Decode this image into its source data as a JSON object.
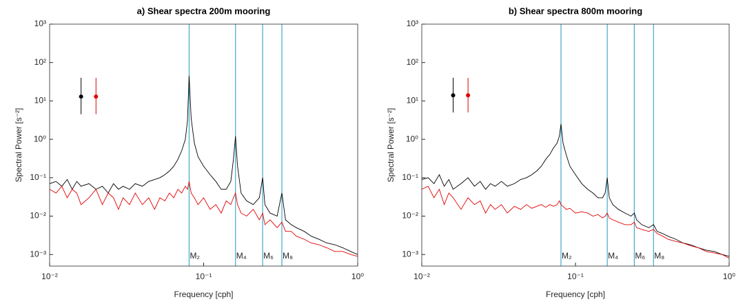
{
  "chart_data": [
    {
      "type": "line",
      "title": "a) Shear spectra 200m mooring",
      "xlabel": "Frequency [cph]",
      "ylabel": "Spectral Power [s⁻²]",
      "log_x": true,
      "log_y": true,
      "xlim": [
        0.01,
        1
      ],
      "ylim": [
        0.0005,
        1000
      ],
      "xticks": [
        {
          "value": 0.01,
          "label": "10⁻²"
        },
        {
          "value": 0.1,
          "label": "10⁻¹"
        },
        {
          "value": 1,
          "label": "10⁰"
        }
      ],
      "yticks": [
        {
          "value": 0.001,
          "label": "10⁻³"
        },
        {
          "value": 0.01,
          "label": "10⁻²"
        },
        {
          "value": 0.1,
          "label": "10⁻¹"
        },
        {
          "value": 1,
          "label": "10⁰"
        },
        {
          "value": 10,
          "label": "10¹"
        },
        {
          "value": 100,
          "label": "10²"
        },
        {
          "value": 1000,
          "label": "10³"
        }
      ],
      "x": [
        0.01,
        0.011,
        0.012,
        0.013,
        0.014,
        0.015,
        0.016,
        0.018,
        0.02,
        0.022,
        0.024,
        0.026,
        0.028,
        0.03,
        0.033,
        0.036,
        0.04,
        0.044,
        0.048,
        0.052,
        0.056,
        0.06,
        0.064,
        0.068,
        0.072,
        0.076,
        0.0785,
        0.0805,
        0.083,
        0.087,
        0.092,
        0.1,
        0.11,
        0.12,
        0.13,
        0.14,
        0.15,
        0.156,
        0.161,
        0.166,
        0.175,
        0.19,
        0.21,
        0.23,
        0.2415,
        0.25,
        0.27,
        0.3,
        0.322,
        0.34,
        0.37,
        0.4,
        0.45,
        0.5,
        0.56,
        0.63,
        0.71,
        0.8,
        0.9,
        1.0
      ],
      "series": [
        {
          "color": "#000000",
          "values": [
            0.07,
            0.08,
            0.06,
            0.09,
            0.05,
            0.08,
            0.06,
            0.07,
            0.05,
            0.06,
            0.04,
            0.07,
            0.05,
            0.06,
            0.05,
            0.07,
            0.06,
            0.08,
            0.09,
            0.1,
            0.12,
            0.15,
            0.2,
            0.3,
            0.5,
            1.0,
            3.0,
            45,
            3.5,
            0.8,
            0.35,
            0.2,
            0.12,
            0.08,
            0.05,
            0.05,
            0.08,
            0.3,
            1.2,
            0.2,
            0.04,
            0.025,
            0.02,
            0.03,
            0.1,
            0.02,
            0.012,
            0.01,
            0.04,
            0.008,
            0.006,
            0.005,
            0.004,
            0.003,
            0.0025,
            0.002,
            0.0018,
            0.0015,
            0.0012,
            0.001
          ]
        },
        {
          "color": "#e00000",
          "values": [
            0.05,
            0.04,
            0.06,
            0.03,
            0.05,
            0.04,
            0.02,
            0.03,
            0.05,
            0.02,
            0.04,
            0.03,
            0.015,
            0.03,
            0.02,
            0.04,
            0.02,
            0.03,
            0.015,
            0.03,
            0.025,
            0.04,
            0.03,
            0.05,
            0.04,
            0.06,
            0.05,
            0.08,
            0.04,
            0.03,
            0.02,
            0.03,
            0.015,
            0.02,
            0.012,
            0.025,
            0.02,
            0.03,
            0.04,
            0.02,
            0.012,
            0.01,
            0.015,
            0.008,
            0.012,
            0.006,
            0.008,
            0.005,
            0.007,
            0.004,
            0.004,
            0.003,
            0.0025,
            0.002,
            0.0018,
            0.0015,
            0.0012,
            0.0012,
            0.001,
            0.0009
          ]
        }
      ],
      "tidal_lines": [
        {
          "label": "M₂",
          "x": 0.0805
        },
        {
          "label": "M₄",
          "x": 0.161
        },
        {
          "label": "M₆",
          "x": 0.2415
        },
        {
          "label": "M₈",
          "x": 0.322
        }
      ],
      "tidal_color": "#3fa9c9",
      "error_bars": [
        {
          "color": "#000000",
          "x": 0.016,
          "value": 13,
          "lower": 4.5,
          "upper": 40
        },
        {
          "color": "#e00000",
          "x": 0.02,
          "value": 13,
          "lower": 4.5,
          "upper": 40
        }
      ]
    },
    {
      "type": "line",
      "title": "b) Shear spectra 800m mooring",
      "xlabel": "Frequency [cph]",
      "ylabel": "Spectral Power [s⁻²]",
      "log_x": true,
      "log_y": true,
      "xlim": [
        0.01,
        1
      ],
      "ylim": [
        0.0005,
        1000
      ],
      "xticks": [
        {
          "value": 0.01,
          "label": "10⁻²"
        },
        {
          "value": 0.1,
          "label": "10⁻¹"
        },
        {
          "value": 1,
          "label": "10⁰"
        }
      ],
      "yticks": [
        {
          "value": 0.001,
          "label": "10⁻³"
        },
        {
          "value": 0.01,
          "label": "10⁻²"
        },
        {
          "value": 0.1,
          "label": "10⁻¹"
        },
        {
          "value": 1,
          "label": "10⁰"
        },
        {
          "value": 10,
          "label": "10¹"
        },
        {
          "value": 100,
          "label": "10²"
        },
        {
          "value": 1000,
          "label": "10³"
        }
      ],
      "x": [
        0.01,
        0.011,
        0.012,
        0.013,
        0.014,
        0.015,
        0.016,
        0.018,
        0.02,
        0.022,
        0.024,
        0.026,
        0.028,
        0.03,
        0.033,
        0.036,
        0.04,
        0.044,
        0.048,
        0.052,
        0.056,
        0.06,
        0.064,
        0.068,
        0.072,
        0.076,
        0.0785,
        0.0805,
        0.083,
        0.087,
        0.092,
        0.1,
        0.11,
        0.12,
        0.13,
        0.14,
        0.15,
        0.156,
        0.161,
        0.166,
        0.175,
        0.19,
        0.21,
        0.23,
        0.2415,
        0.25,
        0.27,
        0.3,
        0.322,
        0.34,
        0.37,
        0.4,
        0.45,
        0.5,
        0.56,
        0.63,
        0.71,
        0.8,
        0.9,
        1.0
      ],
      "series": [
        {
          "color": "#000000",
          "values": [
            0.09,
            0.1,
            0.07,
            0.12,
            0.06,
            0.09,
            0.05,
            0.07,
            0.1,
            0.06,
            0.08,
            0.05,
            0.07,
            0.06,
            0.08,
            0.06,
            0.07,
            0.09,
            0.1,
            0.12,
            0.15,
            0.2,
            0.3,
            0.4,
            0.6,
            0.8,
            1.2,
            2.5,
            0.8,
            0.4,
            0.2,
            0.12,
            0.07,
            0.05,
            0.04,
            0.03,
            0.03,
            0.04,
            0.1,
            0.03,
            0.02,
            0.015,
            0.012,
            0.01,
            0.012,
            0.008,
            0.006,
            0.005,
            0.006,
            0.004,
            0.0035,
            0.003,
            0.0025,
            0.002,
            0.0018,
            0.0015,
            0.0013,
            0.0012,
            0.001,
            0.0009
          ]
        },
        {
          "color": "#e00000",
          "values": [
            0.05,
            0.06,
            0.03,
            0.05,
            0.02,
            0.04,
            0.03,
            0.015,
            0.03,
            0.02,
            0.025,
            0.012,
            0.02,
            0.015,
            0.02,
            0.012,
            0.018,
            0.015,
            0.02,
            0.016,
            0.018,
            0.02,
            0.017,
            0.02,
            0.018,
            0.02,
            0.025,
            0.02,
            0.018,
            0.015,
            0.016,
            0.012,
            0.013,
            0.012,
            0.01,
            0.011,
            0.009,
            0.01,
            0.012,
            0.009,
            0.008,
            0.007,
            0.006,
            0.006,
            0.007,
            0.005,
            0.0045,
            0.004,
            0.0045,
            0.0035,
            0.003,
            0.0025,
            0.0022,
            0.002,
            0.0017,
            0.0015,
            0.0012,
            0.0011,
            0.001,
            0.0008
          ]
        }
      ],
      "tidal_lines": [
        {
          "label": "M₂",
          "x": 0.0805
        },
        {
          "label": "M₄",
          "x": 0.161
        },
        {
          "label": "M₆",
          "x": 0.2415
        },
        {
          "label": "M₈",
          "x": 0.322
        }
      ],
      "tidal_color": "#3fa9c9",
      "error_bars": [
        {
          "color": "#000000",
          "x": 0.016,
          "value": 14,
          "lower": 5,
          "upper": 40
        },
        {
          "color": "#e00000",
          "x": 0.02,
          "value": 14,
          "lower": 5,
          "upper": 40
        }
      ]
    }
  ]
}
